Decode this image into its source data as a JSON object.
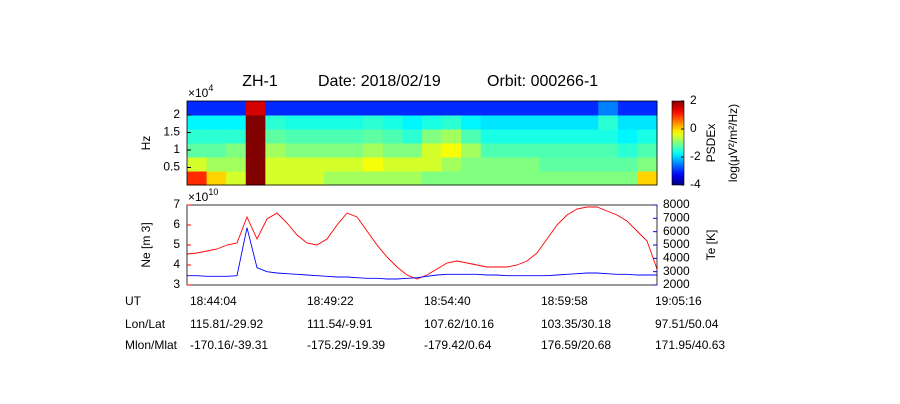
{
  "header": {
    "satellite": "ZH-1",
    "date": "Date: 2018/02/19",
    "orbit": "Orbit: 000266-1"
  },
  "chart_data": [
    {
      "type": "heatmap",
      "ylabel": "Hz",
      "ymultiplier": "×10",
      "ymultiplier_exp": "4",
      "ylim": [
        0,
        2.4
      ],
      "yticks": [
        0.5,
        1,
        1.5,
        2
      ],
      "colormap": "jet",
      "zlim": [
        -4,
        2
      ],
      "zticks": [
        2,
        0,
        -2,
        -4
      ],
      "colorbar_label": "PSDEx",
      "colorbar_unit": "log(μV²/m²/Hz)",
      "z": [
        [
          1,
          0,
          -0.5,
          2,
          -0.5,
          -0.5,
          -0.5,
          -0.8,
          -0.8,
          -0.8,
          -0.8,
          -0.8,
          -1,
          -1,
          -1,
          -1,
          -1,
          -1,
          -1,
          -1,
          -1,
          -1,
          -1,
          0
        ],
        [
          -0.5,
          -0.8,
          -0.8,
          2,
          -0.5,
          -0.5,
          -0.5,
          -0.5,
          -0.5,
          -0.3,
          -0.5,
          -0.5,
          -0.5,
          -0.8,
          -1,
          -1,
          -1,
          -1,
          -1.2,
          -1.2,
          -1.2,
          -1.2,
          -1.2,
          -1
        ],
        [
          -1.2,
          -1.2,
          -1,
          2,
          -0.8,
          -1,
          -1,
          -1,
          -1,
          -0.8,
          -1,
          -1,
          -0.5,
          -0.3,
          -0.8,
          -1.3,
          -1.3,
          -1.3,
          -1.3,
          -1.3,
          -1.3,
          -1.3,
          -1.5,
          -1.3
        ],
        [
          -1.5,
          -1.5,
          -1.5,
          2,
          -1.2,
          -1.3,
          -1.3,
          -1.3,
          -1.3,
          -1.2,
          -1.3,
          -1.5,
          -1,
          -0.8,
          -1.3,
          -1.6,
          -1.6,
          -1.6,
          -1.6,
          -1.6,
          -1.6,
          -1.6,
          -1.8,
          -1.6
        ],
        [
          -1.8,
          -1.8,
          -1.8,
          2,
          -1.5,
          -1.6,
          -1.6,
          -1.6,
          -1.6,
          -1.5,
          -1.6,
          -1.8,
          -1.6,
          -1.5,
          -1.8,
          -1.9,
          -1.9,
          -1.9,
          -1.9,
          -1.9,
          -1.9,
          -1.5,
          -1.9,
          -1.9
        ],
        [
          -3,
          -3,
          -3,
          1.5,
          -3,
          -3,
          -3,
          -3,
          -3,
          -3,
          -3,
          -3,
          -3,
          -3,
          -3,
          -3,
          -3,
          -3,
          -3,
          -3,
          -3,
          -2.5,
          -3,
          -3
        ]
      ]
    },
    {
      "type": "line",
      "ylabel": "Ne [m 3]",
      "ymultiplier": "×10",
      "ymultiplier_exp": "10",
      "ylim": [
        3,
        7
      ],
      "yticks": [
        3,
        4,
        5,
        6,
        7
      ],
      "y2label": "Te [K]",
      "y2lim": [
        2000,
        8000
      ],
      "y2ticks": [
        2000,
        3000,
        4000,
        5000,
        6000,
        7000,
        8000
      ],
      "ycolor": "#ff0000",
      "y2color": "#0000ff",
      "series": [
        {
          "color": "#ff0000",
          "values": [
            4.55,
            4.6,
            4.7,
            4.8,
            5.0,
            5.1,
            6.4,
            5.3,
            6.3,
            6.6,
            6.1,
            5.5,
            5.1,
            5.0,
            5.3,
            6.0,
            6.6,
            6.4,
            5.7,
            5.0,
            4.4,
            3.9,
            3.5,
            3.3,
            3.5,
            3.8,
            4.1,
            4.2,
            4.1,
            4.0,
            3.9,
            3.9,
            3.9,
            4.0,
            4.2,
            4.6,
            5.3,
            6.0,
            6.5,
            6.8,
            6.9,
            6.9,
            6.7,
            6.5,
            6.2,
            5.7,
            5.2,
            3.8
          ]
        },
        {
          "color": "#0000ff",
          "axis": "y2",
          "values": [
            2700,
            2700,
            2650,
            2650,
            2650,
            2700,
            6300,
            3300,
            3000,
            2900,
            2850,
            2800,
            2750,
            2700,
            2650,
            2600,
            2600,
            2550,
            2500,
            2500,
            2450,
            2450,
            2500,
            2550,
            2650,
            2750,
            2800,
            2800,
            2800,
            2800,
            2750,
            2750,
            2700,
            2700,
            2700,
            2700,
            2700,
            2750,
            2800,
            2850,
            2900,
            2900,
            2850,
            2800,
            2800,
            2750,
            2750,
            2750
          ]
        }
      ]
    }
  ],
  "orbit_table": {
    "rows": [
      [
        "UT",
        "18:44:04",
        "18:49:22",
        "18:54:40",
        "18:59:58",
        "19:05:16"
      ],
      [
        "Lon/Lat",
        "115.81/-29.92",
        "111.54/-9.91",
        "107.62/10.16",
        "103.35/30.18",
        "97.51/50.04"
      ],
      [
        "Mlon/Mlat",
        "-170.16/-39.31",
        "-175.29/-19.39",
        "-179.42/0.64",
        "176.59/20.68",
        "171.95/40.63"
      ]
    ]
  }
}
